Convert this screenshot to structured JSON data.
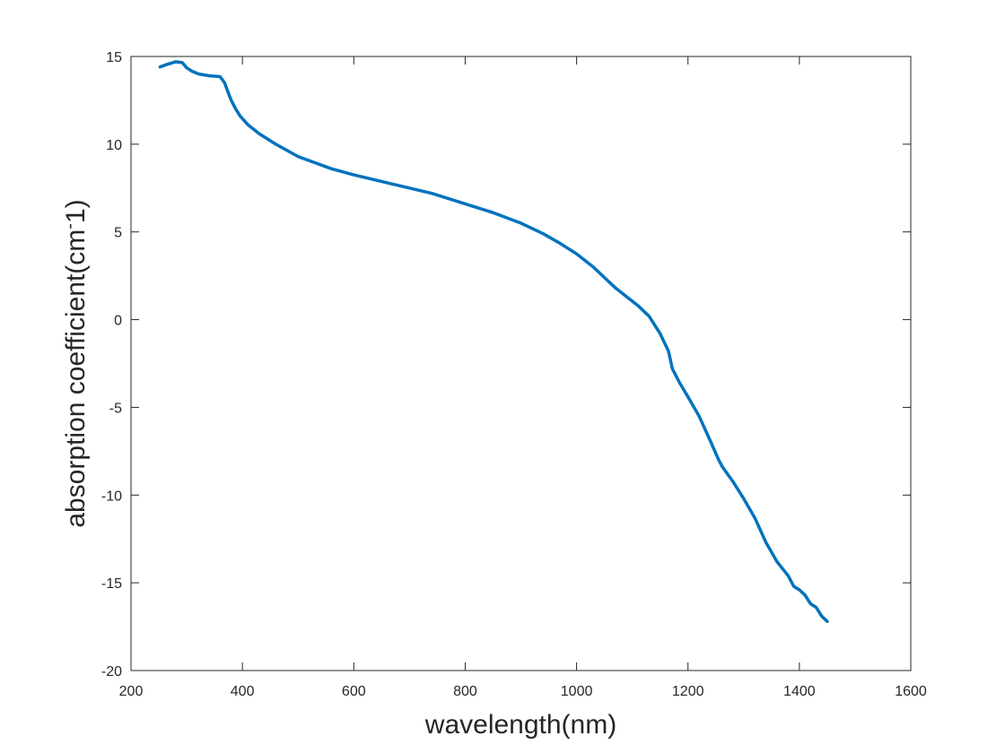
{
  "chart_data": {
    "type": "line",
    "title": "",
    "xlabel": "wavelength(nm)",
    "ylabel_main": "absorption coefficient(cm",
    "ylabel_sup": "-",
    "ylabel_tail": "1)",
    "xlim": [
      200,
      1600
    ],
    "ylim": [
      -20,
      15
    ],
    "xticks": [
      200,
      400,
      600,
      800,
      1000,
      1200,
      1400,
      1600
    ],
    "yticks": [
      -20,
      -15,
      -10,
      -5,
      0,
      5,
      10,
      15
    ],
    "grid": false,
    "legend": "none",
    "colors": {
      "line": "#0072BD",
      "axis": "#262626"
    },
    "series": [
      {
        "x": [
          252,
          265,
          280,
          292,
          300,
          310,
          322,
          340,
          360,
          368,
          375,
          380,
          388,
          396,
          410,
          430,
          460,
          500,
          560,
          600,
          660,
          700,
          740,
          800,
          850,
          900,
          940,
          970,
          1000,
          1030,
          1050,
          1070,
          1090,
          1110,
          1130,
          1150,
          1165,
          1172,
          1185,
          1200,
          1220,
          1240,
          1255,
          1262,
          1280,
          1300,
          1320,
          1340,
          1360,
          1380,
          1390,
          1400,
          1410,
          1420,
          1430,
          1440,
          1450
        ],
        "y": [
          14.4,
          14.55,
          14.7,
          14.65,
          14.35,
          14.15,
          14.0,
          13.9,
          13.85,
          13.5,
          12.9,
          12.5,
          12.0,
          11.6,
          11.1,
          10.6,
          10.0,
          9.3,
          8.6,
          8.25,
          7.8,
          7.5,
          7.2,
          6.6,
          6.1,
          5.5,
          4.9,
          4.35,
          3.75,
          3.0,
          2.4,
          1.8,
          1.3,
          0.8,
          0.2,
          -0.8,
          -1.8,
          -2.8,
          -3.6,
          -4.4,
          -5.5,
          -6.9,
          -8.0,
          -8.4,
          -9.2,
          -10.2,
          -11.3,
          -12.7,
          -13.8,
          -14.6,
          -15.2,
          -15.4,
          -15.7,
          -16.2,
          -16.4,
          -16.9,
          -17.2
        ]
      }
    ]
  }
}
